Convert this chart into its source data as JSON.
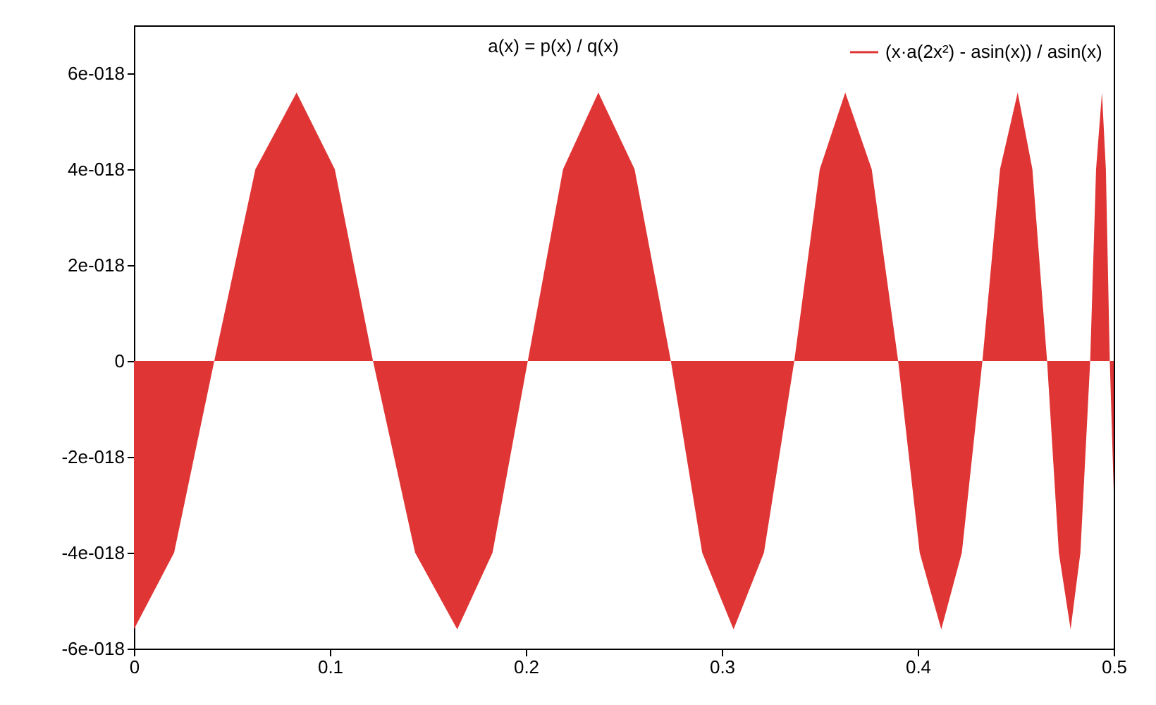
{
  "chart_data": {
    "type": "area",
    "title": "a(x) = p(x) / q(x)",
    "x": [
      0,
      0.0205,
      0.041,
      0.062,
      0.083,
      0.1025,
      0.122,
      0.1435,
      0.165,
      0.183,
      0.201,
      0.219,
      0.237,
      0.2555,
      0.274,
      0.29,
      0.306,
      0.3215,
      0.337,
      0.35,
      0.363,
      0.3765,
      0.39,
      0.401,
      0.412,
      0.4225,
      0.433,
      0.442,
      0.451,
      0.4585,
      0.466,
      0.472,
      0.478,
      0.483,
      0.488,
      0.491,
      0.494,
      0.496,
      0.498,
      0.5
    ],
    "series": [
      {
        "name": "(x·a(2x²) - asin(x)) / asin(x)",
        "color": "#e03535",
        "values": [
          -5.6e-18,
          -4e-18,
          0,
          4e-18,
          5.6e-18,
          4e-18,
          0,
          -4e-18,
          -5.6e-18,
          -4e-18,
          0,
          4e-18,
          5.6e-18,
          4e-18,
          0,
          -4e-18,
          -5.6e-18,
          -4e-18,
          0,
          4e-18,
          5.6e-18,
          4e-18,
          0,
          -4e-18,
          -5.6e-18,
          -4e-18,
          0,
          4e-18,
          5.6e-18,
          4e-18,
          0,
          -4e-18,
          -5.6e-18,
          -4e-18,
          0,
          4e-18,
          5.6e-18,
          4e-18,
          0,
          -2.7e-18
        ]
      }
    ],
    "xlim": [
      0,
      0.5
    ],
    "xticks": [
      0,
      0.1,
      0.2,
      0.3,
      0.4,
      0.5
    ],
    "ylim": [
      -6e-18,
      7e-18
    ],
    "yticks": [
      {
        "value": -6e-18,
        "label": "-6e-018"
      },
      {
        "value": -4e-18,
        "label": "-4e-018"
      },
      {
        "value": -2e-18,
        "label": "-2e-018"
      },
      0,
      {
        "value": 2e-18,
        "label": "2e-018"
      },
      {
        "value": 4e-18,
        "label": "4e-018"
      },
      {
        "value": 6e-18,
        "label": "6e-018"
      }
    ],
    "legend": "top right"
  }
}
